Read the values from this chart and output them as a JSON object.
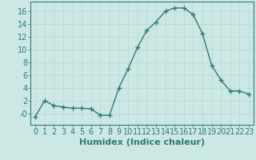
{
  "x": [
    0,
    1,
    2,
    3,
    4,
    5,
    6,
    7,
    8,
    9,
    10,
    11,
    12,
    13,
    14,
    15,
    16,
    17,
    18,
    19,
    20,
    21,
    22,
    23
  ],
  "y": [
    -0.5,
    2.0,
    1.2,
    1.0,
    0.8,
    0.8,
    0.7,
    -0.3,
    -0.3,
    4.0,
    7.0,
    10.3,
    13.0,
    14.3,
    16.0,
    16.5,
    16.5,
    15.5,
    12.5,
    7.5,
    5.2,
    3.5,
    3.5,
    3.0
  ],
  "xlabel": "Humidex (Indice chaleur)",
  "xlim": [
    -0.5,
    23.5
  ],
  "ylim": [
    -1.8,
    17.5
  ],
  "yticks": [
    0,
    2,
    4,
    6,
    8,
    10,
    12,
    14,
    16
  ],
  "ytick_labels": [
    "-0",
    "2",
    "4",
    "6",
    "8",
    "10",
    "12",
    "14",
    "16"
  ],
  "xticks": [
    0,
    1,
    2,
    3,
    4,
    5,
    6,
    7,
    8,
    9,
    10,
    11,
    12,
    13,
    14,
    15,
    16,
    17,
    18,
    19,
    20,
    21,
    22,
    23
  ],
  "line_color": "#2e7d6e",
  "marker": "+",
  "marker_size": 4,
  "marker_edge_width": 1.0,
  "line_width": 1.0,
  "bg_color": "#cce8e4",
  "grid_color": "#b8d8d4",
  "xlabel_fontsize": 8,
  "tick_fontsize": 7
}
